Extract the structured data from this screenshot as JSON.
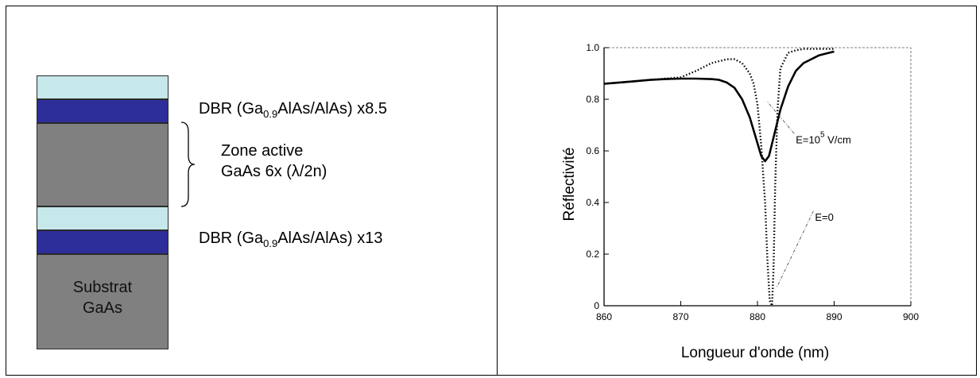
{
  "structure": {
    "dbr_top": {
      "prefix": "DBR (Ga",
      "subscript": "0.9",
      "suffix": "AlAs/AlAs) x8.5"
    },
    "active_zone": {
      "line1": "Zone active",
      "line2": "GaAs 6x (λ/2n)"
    },
    "dbr_bottom": {
      "prefix": "DBR (Ga",
      "subscript": "0.9",
      "suffix": "AlAs/AlAs) x13"
    },
    "substrate": {
      "line1": "Substrat",
      "line2": "GaAs"
    },
    "layer_colors": {
      "dbr_light": "#c7e8ea",
      "dbr_dark": "#2e2e9a",
      "gaas": "#808080"
    }
  },
  "chart_data": {
    "type": "line",
    "title": "",
    "xlabel": "Longueur d'onde (nm)",
    "ylabel": "Réflectivité",
    "xlim": [
      860,
      900
    ],
    "ylim": [
      0,
      1.0
    ],
    "xticks": [
      860,
      870,
      880,
      890,
      900
    ],
    "yticks": [
      0,
      0.2,
      0.4,
      0.6,
      0.8,
      1.0
    ],
    "xtick_labels": [
      "860",
      "870",
      "880",
      "890",
      "900"
    ],
    "ytick_labels": [
      "0",
      "0.2",
      "0.4",
      "0.6",
      "0.8",
      "1.0"
    ],
    "series": [
      {
        "style": "solid",
        "x": [
          860,
          862,
          864,
          866,
          868,
          870,
          872,
          874,
          875,
          876,
          877,
          878,
          879,
          880,
          880.5,
          881,
          881.5,
          882,
          883,
          884,
          885,
          886,
          888,
          890
        ],
        "y": [
          0.86,
          0.865,
          0.87,
          0.875,
          0.878,
          0.88,
          0.88,
          0.878,
          0.875,
          0.865,
          0.845,
          0.8,
          0.73,
          0.63,
          0.58,
          0.56,
          0.58,
          0.64,
          0.76,
          0.85,
          0.91,
          0.94,
          0.97,
          0.985
        ]
      },
      {
        "style": "dotted",
        "x": [
          860,
          862,
          864,
          866,
          868,
          870,
          872,
          874,
          876,
          877,
          878,
          879,
          879.5,
          880,
          880.5,
          881,
          881.3,
          881.6,
          881.9,
          882.1,
          882.3,
          882.6,
          883,
          884,
          885,
          886,
          888,
          890
        ],
        "y": [
          0.86,
          0.865,
          0.87,
          0.875,
          0.88,
          0.885,
          0.91,
          0.94,
          0.955,
          0.955,
          0.94,
          0.9,
          0.86,
          0.78,
          0.62,
          0.4,
          0.18,
          0.02,
          0.0,
          0.15,
          0.45,
          0.75,
          0.92,
          0.98,
          0.99,
          0.995,
          0.995,
          0.995
        ]
      }
    ],
    "annotations": [
      {
        "text": "E=10",
        "superscript": "5",
        "suffix": " V/cm",
        "x": 885,
        "y": 0.63,
        "target_x": 881.3,
        "target_y": 0.79
      },
      {
        "text": "E=0",
        "x": 887.5,
        "y": 0.33,
        "target_x": 882.5,
        "target_y": 0.07
      }
    ]
  }
}
